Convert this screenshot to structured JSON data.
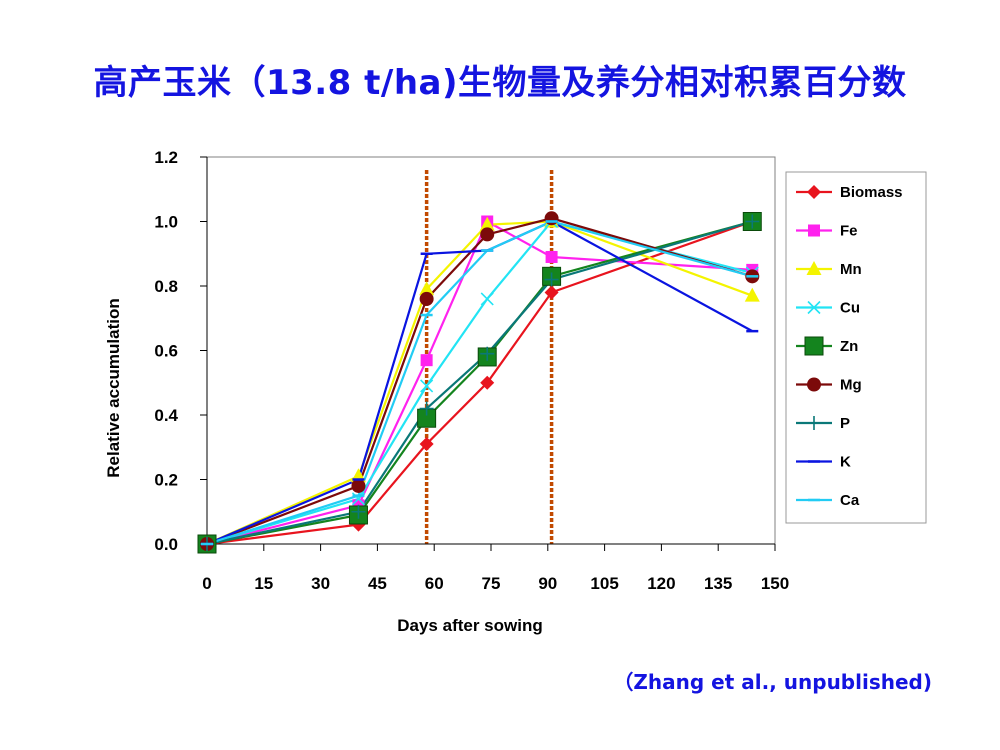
{
  "title": "高产玉米（13.8 t/ha)生物量及养分相对积累百分数",
  "citation": "（Zhang et al., unpublished)",
  "chart_data": {
    "type": "line",
    "xlabel": "Days after sowing",
    "ylabel": "Relative accumulation",
    "xlim": [
      0,
      150
    ],
    "ylim": [
      0,
      1.2
    ],
    "xticks": [
      "0",
      "15",
      "30",
      "45",
      "60",
      "75",
      "90",
      "105",
      "120",
      "135",
      "150"
    ],
    "yticks": [
      "0.0",
      "0.2",
      "0.4",
      "0.6",
      "0.8",
      "1.0",
      "1.2"
    ],
    "x": [
      0,
      40,
      58,
      74,
      91,
      144
    ],
    "vlines": [
      58,
      91
    ],
    "grid": false,
    "legend_position": "right",
    "series": [
      {
        "name": "Biomass",
        "color": "#e8141e",
        "marker": "diamond",
        "values": [
          0,
          0.06,
          0.31,
          0.5,
          0.78,
          1.0
        ]
      },
      {
        "name": "Fe",
        "color": "#ff22ee",
        "marker": "square",
        "values": [
          0,
          0.12,
          0.57,
          1.0,
          0.89,
          0.85
        ]
      },
      {
        "name": "Mn",
        "color": "#f4f400",
        "marker": "triangle",
        "values": [
          0,
          0.21,
          0.79,
          0.99,
          1.0,
          0.77
        ]
      },
      {
        "name": "Cu",
        "color": "#22e4f4",
        "marker": "x",
        "values": [
          0,
          0.14,
          0.49,
          0.76,
          1.0,
          0.84
        ]
      },
      {
        "name": "Zn",
        "color": "#14841e",
        "marker": "bigsquare",
        "values": [
          0,
          0.09,
          0.39,
          0.58,
          0.83,
          1.0
        ]
      },
      {
        "name": "Mg",
        "color": "#7c0a0a",
        "marker": "circle",
        "values": [
          0,
          0.18,
          0.76,
          0.96,
          1.01,
          0.83
        ]
      },
      {
        "name": "P",
        "color": "#0a7878",
        "marker": "plus",
        "values": [
          0,
          0.1,
          0.42,
          0.59,
          0.82,
          1.0
        ]
      },
      {
        "name": "K",
        "color": "#0a14e0",
        "marker": "dash",
        "values": [
          0,
          0.2,
          0.9,
          0.91,
          1.0,
          0.66
        ]
      },
      {
        "name": "Ca",
        "color": "#22ccf4",
        "marker": "dash",
        "values": [
          0,
          0.15,
          0.71,
          0.91,
          1.0,
          0.83
        ]
      }
    ]
  }
}
